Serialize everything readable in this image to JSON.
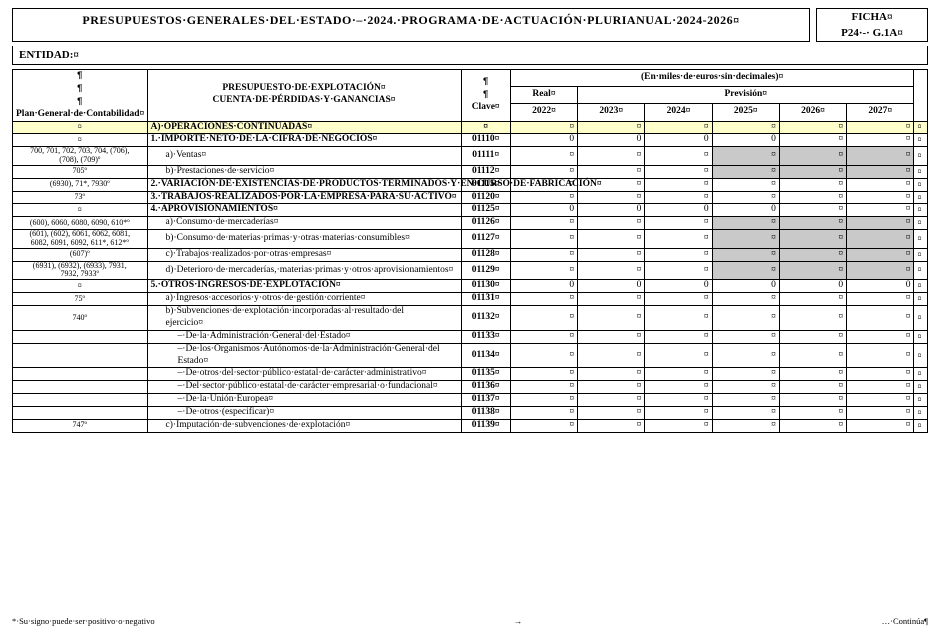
{
  "header": {
    "title": "PRESUPUESTOS·GENERALES·DEL·ESTADO·–·2024.·PROGRAMA·DE·ACTUACIÓN·PLURIANUAL·2024-2026¤",
    "ficha_line1": "FICHA¤",
    "ficha_line2": "P24·-· G.1A¤",
    "entidad_label": "ENTIDAD:¤"
  },
  "colheads": {
    "plan": "Plan·General·de·Contabilidad¤",
    "presup1": "PRESUPUESTO·DE·EXPLOTACIÓN¤",
    "presup2": "CUENTA·DE·PÉRDIDAS·Y·GANANCIAS¤",
    "clave": "Clave¤",
    "units": "(En·miles·de·euros·sin·decimales)¤",
    "real": "Real¤",
    "prevision": "Previsión¤",
    "y2022": "2022¤",
    "y2023": "2023¤",
    "y2024": "2024¤",
    "y2025": "2025¤",
    "y2026": "2026¤",
    "y2027": "2027¤"
  },
  "rows": [
    {
      "plan": "¤",
      "desc": "A)·OPERACIONES·CONTINUADAS¤",
      "bold": true,
      "yellow": true,
      "clave": "¤",
      "cells": [
        "¤",
        "¤",
        "¤",
        "¤",
        "¤",
        "¤"
      ],
      "end": "¤"
    },
    {
      "plan": "¤",
      "desc": "1.·IMPORTE·NETO·DE·LA·CIFRA·DE·NEGOCIOS¤",
      "bold": true,
      "clave": "01110¤",
      "cells": [
        "0",
        "0",
        "0",
        "0",
        "¤",
        "¤"
      ],
      "end": "¤"
    },
    {
      "plan": "700, 701, 702, 703, 704, (706),¶ (708), (709)º",
      "desc": "a)·Ventas¤",
      "sub": 1,
      "clave": "01111¤",
      "cells": [
        "¤",
        "¤",
        "¤",
        "¤",
        "¤",
        "¤"
      ],
      "grey": [
        3,
        4,
        5
      ],
      "end": "¤"
    },
    {
      "plan": "705º",
      "desc": "b)·Prestaciones·de·servicio¤",
      "sub": 1,
      "clave": "01112¤",
      "cells": [
        "¤",
        "¤",
        "¤",
        "¤",
        "¤",
        "¤"
      ],
      "grey": [
        3,
        4,
        5
      ],
      "end": "¤"
    },
    {
      "plan": "(6930), 71*, 7930º",
      "desc": "2.·VARIACIÓN·DE·EXISTENCIAS·DE·PRODUCTOS·TERMINADOS·Y·EN·CURSO·DE·FABRICACIÓN¤",
      "bold": true,
      "clave": "01115¤",
      "cells": [
        "¤",
        "¤",
        "¤",
        "¤",
        "¤",
        "¤"
      ],
      "end": "¤"
    },
    {
      "plan": "73º",
      "desc": "3.·TRABAJOS·REALIZADOS·POR·LA·EMPRESA·PARA·SU·ACTIVO¤",
      "bold": true,
      "clave": "01120¤",
      "cells": [
        "¤",
        "¤",
        "¤",
        "¤",
        "¤",
        "¤"
      ],
      "end": "¤"
    },
    {
      "plan": "¤",
      "desc": "4.·APROVISIONAMIENTOS¤",
      "bold": true,
      "clave": "01125¤",
      "cells": [
        "0",
        "0",
        "0",
        "0",
        "¤",
        "¤"
      ],
      "end": "¤"
    },
    {
      "plan": "(600), 6060, 6080, 6090, 610*º",
      "desc": "a)·Consumo·de·mercaderías¤",
      "sub": 1,
      "clave": "01126¤",
      "cells": [
        "¤",
        "¤",
        "¤",
        "¤",
        "¤",
        "¤"
      ],
      "grey": [
        3,
        4,
        5
      ],
      "end": "¤"
    },
    {
      "plan": "(601), (602), 6061, 6062, 6081,¶ 6082, 6091, 6092, 611*, 612*º",
      "desc": "b)·Consumo·de·materias·primas·y·otras·materias·consumibles¤",
      "sub": 1,
      "clave": "01127¤",
      "cells": [
        "¤",
        "¤",
        "¤",
        "¤",
        "¤",
        "¤"
      ],
      "grey": [
        3,
        4,
        5
      ],
      "end": "¤"
    },
    {
      "plan": "(607)º",
      "desc": "c)·Trabajos·realizados·por·otras·empresas¤",
      "sub": 1,
      "clave": "01128¤",
      "cells": [
        "¤",
        "¤",
        "¤",
        "¤",
        "¤",
        "¤"
      ],
      "grey": [
        3,
        4,
        5
      ],
      "end": "¤"
    },
    {
      "plan": "(6931), (6932), (6933), 7931,¶ 7932, 7933º",
      "desc": "d)·Deterioro·de·mercaderías,·materias·primas·y·otros·aprovisionamientos¤",
      "sub": 1,
      "clave": "01129¤",
      "cells": [
        "¤",
        "¤",
        "¤",
        "¤",
        "¤",
        "¤"
      ],
      "grey": [
        3,
        4,
        5
      ],
      "end": "¤"
    },
    {
      "plan": "¤",
      "desc": "5.·OTROS·INGRESOS·DE·EXPLOTACIÓN¤",
      "bold": true,
      "clave": "01130¤",
      "cells": [
        "0",
        "0",
        "0",
        "0",
        "0",
        "0"
      ],
      "end": "¤"
    },
    {
      "plan": "75º",
      "desc": "a)·Ingresos·accesorios·y·otros·de·gestión·corriente¤",
      "sub": 1,
      "clave": "01131¤",
      "cells": [
        "¤",
        "¤",
        "¤",
        "¤",
        "¤",
        "¤"
      ],
      "end": "¤"
    },
    {
      "plan": "740º",
      "desc": "b)·Subvenciones·de·explotación·incorporadas·al·resultado·del¶ ejercicio¤",
      "sub": 1,
      "clave": "01132¤",
      "cells": [
        "¤",
        "¤",
        "¤",
        "¤",
        "¤",
        "¤"
      ],
      "end": "¤"
    },
    {
      "plan": "",
      "desc": "–·De·la·Administración·General·del·Estado¤",
      "sub": 2,
      "clave": "01133¤",
      "cells": [
        "¤",
        "¤",
        "¤",
        "¤",
        "¤",
        "¤"
      ],
      "end": "¤"
    },
    {
      "plan": "",
      "desc": "–·De·los·Organismos·Autónomos·de·la·Administración·General·del¶ Estado¤",
      "sub": 2,
      "clave": "01134¤",
      "cells": [
        "¤",
        "¤",
        "¤",
        "¤",
        "¤",
        "¤"
      ],
      "end": "¤"
    },
    {
      "plan": "",
      "desc": "–·De·otros·del·sector·público·estatal·de·carácter·administrativo¤",
      "sub": 2,
      "clave": "01135¤",
      "cells": [
        "¤",
        "¤",
        "¤",
        "¤",
        "¤",
        "¤"
      ],
      "end": "¤"
    },
    {
      "plan": "",
      "desc": "–·Del·sector·público·estatal·de·carácter·empresarial·o·fundacional¤",
      "sub": 2,
      "clave": "01136¤",
      "cells": [
        "¤",
        "¤",
        "¤",
        "¤",
        "¤",
        "¤"
      ],
      "end": "¤"
    },
    {
      "plan": "",
      "desc": "–·De·la·Unión·Europea¤",
      "sub": 2,
      "clave": "01137¤",
      "cells": [
        "¤",
        "¤",
        "¤",
        "¤",
        "¤",
        "¤"
      ],
      "end": "¤"
    },
    {
      "plan": "",
      "desc": "–·De·otros·(especificar)¤",
      "sub": 2,
      "clave": "01138¤",
      "cells": [
        "¤",
        "¤",
        "¤",
        "¤",
        "¤",
        "¤"
      ],
      "end": "¤"
    },
    {
      "plan": "747º",
      "desc": "c)·Imputación·de·subvenciones·de·explotación¤",
      "sub": 1,
      "clave": "01139¤",
      "cells": [
        "¤",
        "¤",
        "¤",
        "¤",
        "¤",
        "¤"
      ],
      "end": "¤"
    }
  ],
  "footer": {
    "left": "*·Su·signo·puede·ser·positivo·o·negativo",
    "mid": "→",
    "right": "…·Continúa¶"
  }
}
